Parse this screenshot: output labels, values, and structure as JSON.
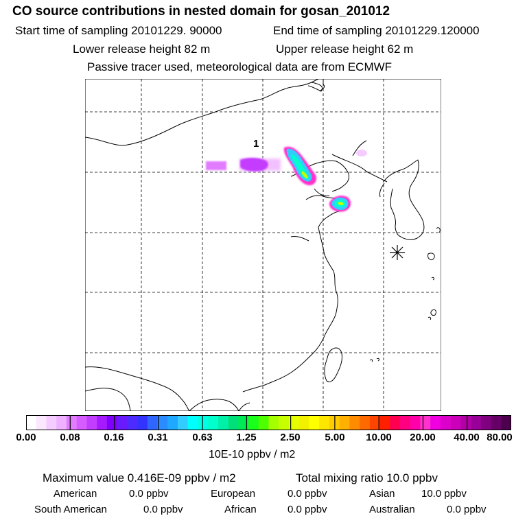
{
  "header": {
    "title": "CO  source contributions in nested domain for gosan_201012",
    "start_label": "Start time of sampling 20101229. 90000",
    "end_label": "End time of sampling 20101229.120000",
    "lower_label": "Lower release height   82 m",
    "upper_label": "Upper release height   62 m",
    "tracer_note": "Passive tracer used, meteorological data are from ECMWF"
  },
  "map": {
    "source_label": "1",
    "receptor_marker": "asterisk-icon",
    "background": "#ffffff",
    "coastline_color": "#000000",
    "plume_colors": [
      "#cc33ff",
      "#9900ff",
      "#33ccff",
      "#00ffcc",
      "#66ff33",
      "#ccff00",
      "#ee00ee"
    ]
  },
  "legend": {
    "ticks": [
      "0.00",
      "0.08",
      "0.16",
      "0.31",
      "0.63",
      "1.25",
      "2.50",
      "5.00",
      "10.00",
      "20.00",
      "40.00",
      "80.00"
    ],
    "units": "10E-10 ppbv / m2",
    "colors": [
      "#ffffff",
      "#fbe8ff",
      "#f5ccff",
      "#eeb0ff",
      "#e17cff",
      "#d65cff",
      "#c33dff",
      "#a61aff",
      "#7f00ff",
      "#6a1aff",
      "#4d2bff",
      "#3333ff",
      "#2e66ff",
      "#2b8cff",
      "#1fa8ff",
      "#33ccff",
      "#00ffff",
      "#00ffe5",
      "#00ffcc",
      "#00f0aa",
      "#00e07a",
      "#00ea55",
      "#19ff19",
      "#4dff00",
      "#a6ff00",
      "#c8ff00",
      "#e6ff00",
      "#f2f200",
      "#ffff00",
      "#ffe600",
      "#ffcc00",
      "#ffb000",
      "#ff8c00",
      "#ff6a00",
      "#ff4400",
      "#ff2000",
      "#ff0050",
      "#ff0080",
      "#ff00aa",
      "#ff33cc",
      "#f000e0",
      "#dd00cc",
      "#cc00bb",
      "#b300a6",
      "#990099",
      "#800080",
      "#660066",
      "#4d004d"
    ]
  },
  "stats": {
    "max_value": "Maximum value  0.416E-09 ppbv / m2",
    "total": "Total mixing ratio       10.0 ppbv",
    "regions": [
      {
        "name": "American",
        "value": "0.0 ppbv"
      },
      {
        "name": "European",
        "value": "0.0 ppbv"
      },
      {
        "name": "Asian",
        "value": "10.0 ppbv"
      },
      {
        "name": "South American",
        "value": "0.0 ppbv"
      },
      {
        "name": "African",
        "value": "0.0 ppbv"
      },
      {
        "name": "Australian",
        "value": "0.0 ppbv"
      }
    ]
  }
}
